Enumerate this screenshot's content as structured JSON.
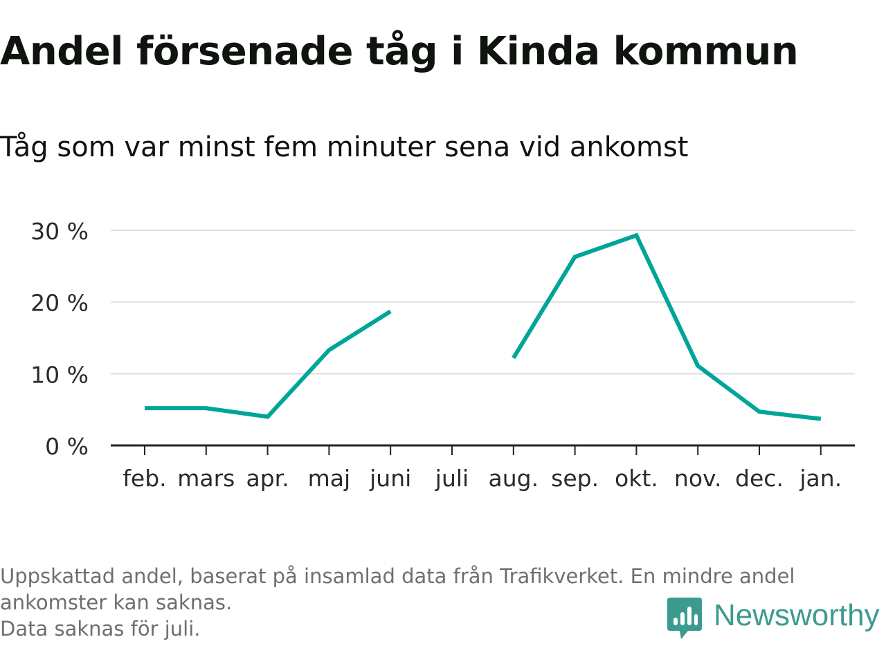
{
  "title": "Andel försenade tåg i Kinda kommun",
  "subtitle": "Tåg som var minst fem minuter sena vid ankomst",
  "chart_data": {
    "type": "line",
    "categories": [
      "feb.",
      "mars",
      "apr.",
      "maj",
      "juni",
      "juli",
      "aug.",
      "sep.",
      "okt.",
      "nov.",
      "dec.",
      "jan."
    ],
    "series": [
      {
        "values": [
          5.2,
          5.2,
          4.0,
          13.3,
          18.7,
          null,
          12.2,
          26.3,
          29.3,
          11.1,
          4.7,
          3.7
        ]
      }
    ],
    "ylim": [
      0,
      30
    ],
    "yticks": [
      0,
      10,
      20,
      30
    ],
    "ytick_labels": [
      "0 %",
      "10 %",
      "20 %",
      "30 %"
    ],
    "xlabel": "",
    "ylabel": "",
    "grid": true,
    "colors": {
      "line": "#00a599",
      "grid": "#dcdcdc",
      "axis": "#222222"
    }
  },
  "footnotes": [
    "Uppskattad andel, baserat på insamlad data från Trafikverket. En mindre andel",
    "ankomster kan saknas.",
    "Data saknas för juli."
  ],
  "logo": {
    "text": "Newsworthy",
    "icon": "newsworthy-logo-icon",
    "color": "#3b9b8f"
  }
}
